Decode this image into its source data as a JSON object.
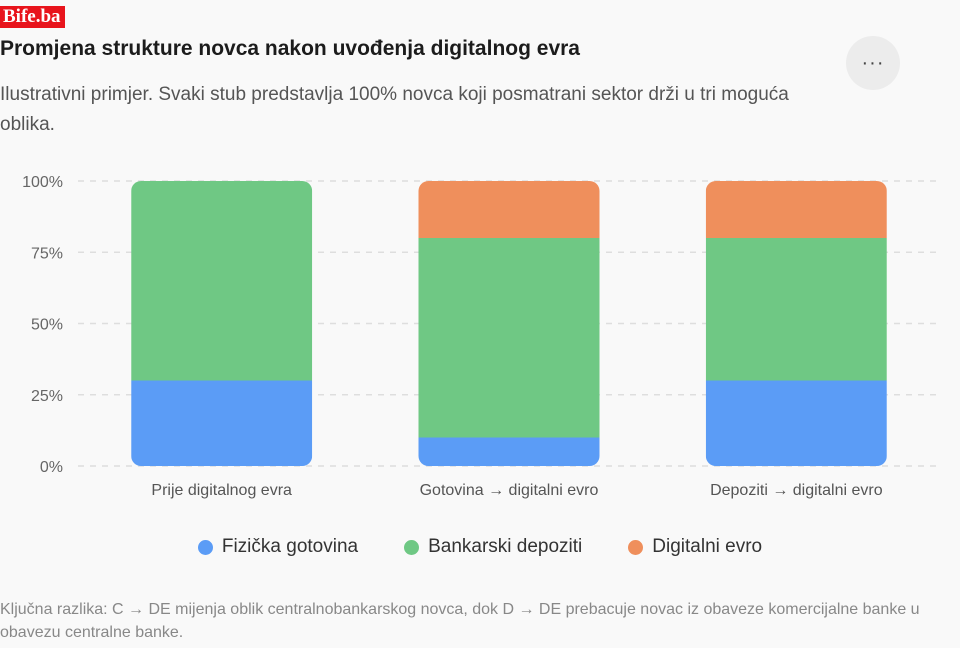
{
  "brand": {
    "logo_text": "Bife.ba"
  },
  "header": {
    "title": "Promjena strukture novca nakon uvođenja digitalnog evra",
    "subtitle": "Ilustrativni primjer. Svaki stub predstavlja 100% novca koji posmatrani sektor drži u tri moguća oblika.",
    "menu_icon": "more-horizontal-icon",
    "menu_label": "···"
  },
  "chart_data": {
    "type": "bar",
    "stacked": true,
    "categories": [
      "Prije digitalnog evra",
      "Gotovina → digitalni evro",
      "Depoziti → digitalni evro"
    ],
    "series": [
      {
        "name": "Fizička gotovina",
        "values": [
          30,
          10,
          30
        ],
        "color": "#5b9cf6"
      },
      {
        "name": "Bankarski depoziti",
        "values": [
          70,
          70,
          50
        ],
        "color": "#6fc884"
      },
      {
        "name": "Digitalni evro",
        "values": [
          0,
          20,
          20
        ],
        "color": "#ef8f5c"
      }
    ],
    "yticks": [
      "0%",
      "25%",
      "50%",
      "75%",
      "100%"
    ],
    "ylim": [
      0,
      100
    ],
    "grid": true,
    "legend": "bottom"
  },
  "footnote": "Ključna razlika: C → DE mijenja oblik centralnobankarskog novca, dok D → DE prebacuje novac iz obaveze komercijalne banke u obavezu centralne banke."
}
